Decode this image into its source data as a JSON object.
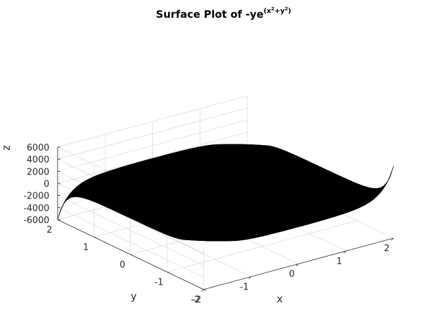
{
  "chart_data": {
    "type": "surface",
    "title": "Surface Plot of -ye",
    "title_exponent": "(x",
    "title_exponent_sq1": "2",
    "title_exponent_mid": "+y",
    "title_exponent_sq2": "2",
    "title_exponent_end": ")",
    "function": "-y*exp(x^2+y^2)",
    "xlabel": "x",
    "ylabel": "y",
    "zlabel": "z",
    "xlim": [
      -2,
      2
    ],
    "ylim": [
      -2,
      2
    ],
    "zlim": [
      -6000,
      6000
    ],
    "x_ticks": [
      "-2",
      "-1",
      "0",
      "1",
      "2"
    ],
    "y_ticks": [
      "-2",
      "-1",
      "0",
      "1",
      "2"
    ],
    "z_ticks": [
      "-6000",
      "-4000",
      "-2000",
      "0",
      "2000",
      "4000",
      "6000"
    ],
    "grid": true,
    "surface_color": "#000000"
  }
}
